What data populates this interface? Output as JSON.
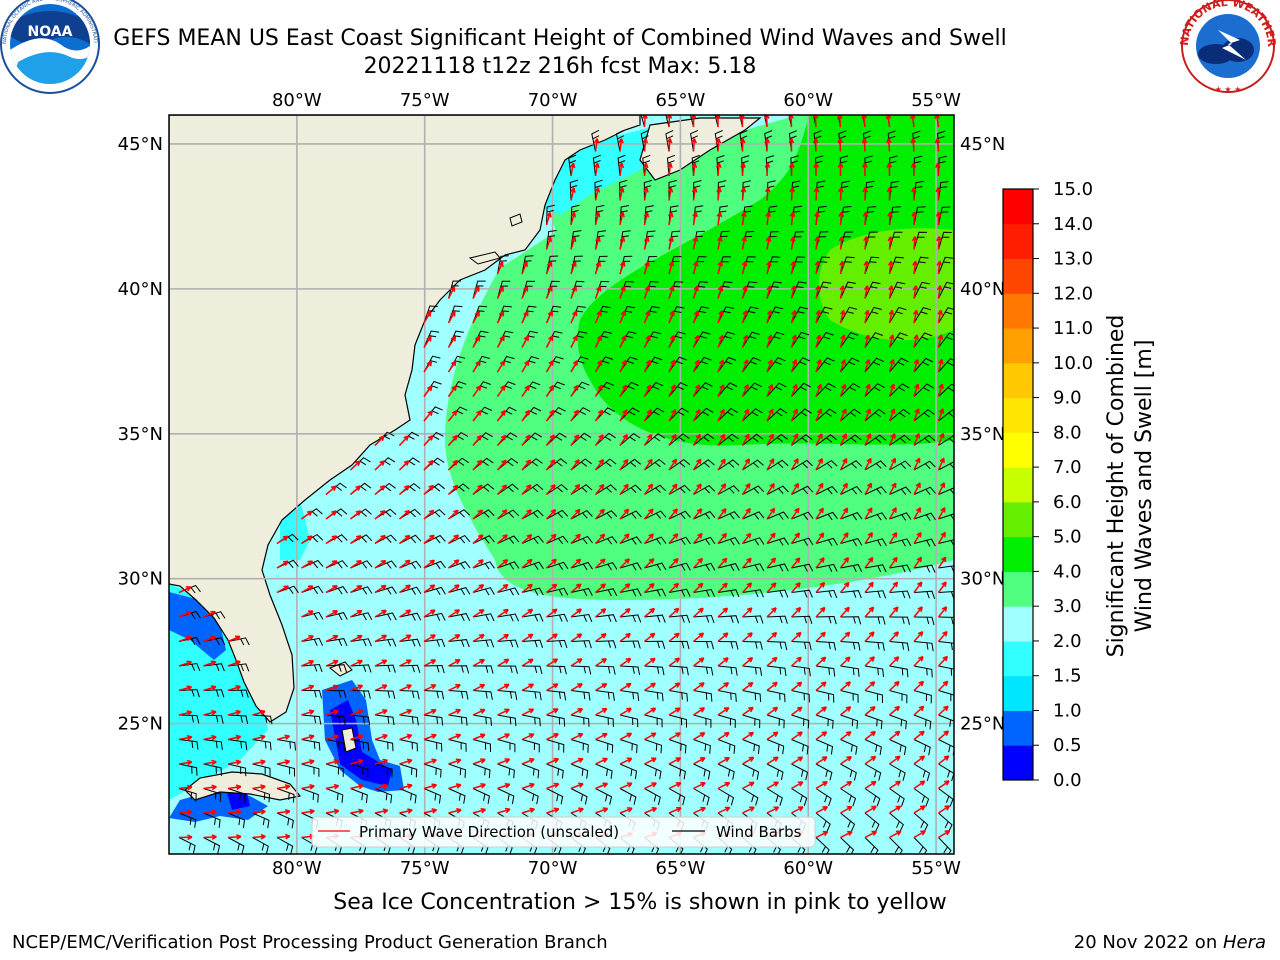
{
  "title_line1": "GEFS MEAN US East Coast Significant Height of Combined Wind Waves and Swell",
  "title_line2": "20221118 t12z 216h fcst   Max: 5.18",
  "ice_note": "Sea Ice Concentration > 15% is shown in pink to yellow",
  "footer_left": "NCEP/EMC/Verification Post Processing Product Generation Branch",
  "footer_date": "20 Nov 2022 on ",
  "footer_machine": "Hera",
  "logo_left": "NOAA",
  "logo_left_ring": "NATIONAL OCEANIC AND ATMOSPHERIC ADMINISTRATION · U.S. DEPARTMENT OF COMMERCE",
  "logo_right_ring": "NATIONAL WEATHER SERVICE",
  "map": {
    "lon_labels": [
      "80°W",
      "75°W",
      "70°W",
      "65°W",
      "60°W",
      "55°W"
    ],
    "lon_values": [
      -80,
      -75,
      -70,
      -65,
      -60,
      -55
    ],
    "lat_labels": [
      "45°N",
      "40°N",
      "35°N",
      "30°N",
      "25°N"
    ],
    "lat_values": [
      45,
      40,
      35,
      30,
      25
    ],
    "lon_range": [
      -85,
      -54.3
    ],
    "lat_range": [
      20.5,
      46
    ]
  },
  "legend": {
    "wave_label": "Primary Wave Direction (unscaled)",
    "barb_label": "Wind Barbs",
    "wave_color": "#ff0000",
    "barb_color": "#000000"
  },
  "colorbar": {
    "label_line1": "Significant Height of Combined",
    "label_line2": "Wind Waves and Swell [m]",
    "ticks": [
      "0.0",
      "0.5",
      "1.0",
      "1.5",
      "2.0",
      "3.0",
      "4.0",
      "5.0",
      "6.0",
      "7.0",
      "8.0",
      "9.0",
      "10.0",
      "11.0",
      "12.0",
      "13.0",
      "14.0",
      "15.0"
    ],
    "colors": [
      "#0000ff",
      "#0064ff",
      "#00e6ff",
      "#32ffff",
      "#a0ffff",
      "#50ff80",
      "#00ee00",
      "#64ee00",
      "#c8ff00",
      "#ffff00",
      "#ffe600",
      "#ffc800",
      "#ffa000",
      "#ff7800",
      "#ff4600",
      "#ff1e00",
      "#ff0000"
    ]
  },
  "colors": {
    "land": "#efeedc",
    "grid": "#b0b0b0",
    "sea_default": "#a0ffff"
  }
}
